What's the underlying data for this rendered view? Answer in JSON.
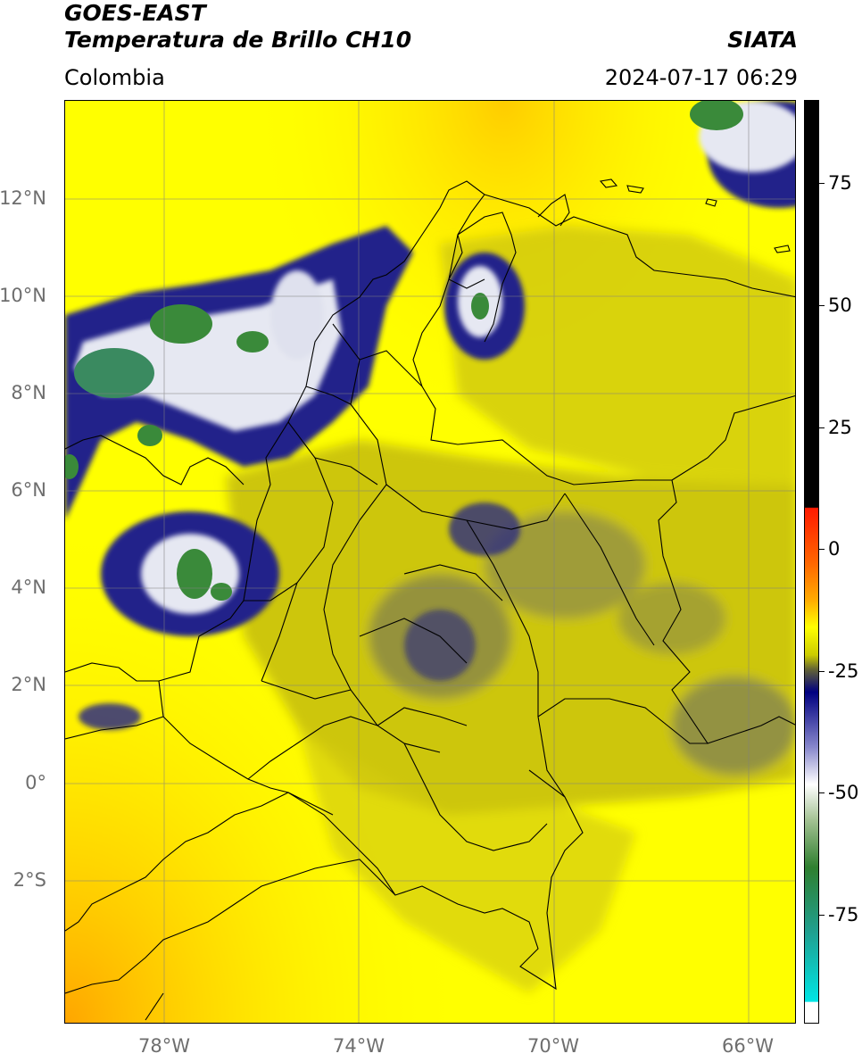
{
  "header": {
    "title_line1": "GOES-EAST",
    "title_line2": "Temperatura de Brillo CH10",
    "region": "Colombia",
    "organization": "SIATA",
    "datetime": "2024-07-17 06:29"
  },
  "map": {
    "latitude_labels": [
      "12°N",
      "10°N",
      "8°N",
      "6°N",
      "4°N",
      "2°N",
      "0°",
      "2°S"
    ],
    "longitude_labels": [
      "78°W",
      "74°W",
      "70°W",
      "66°W"
    ],
    "colors": {
      "background": "#ffff00",
      "warm_edge": "#ffaa00",
      "olive": "#c8c000",
      "dark_olive": "#8a8a4a",
      "navy": "#1a1a7a",
      "white_cloud": "#e8eaf0",
      "green_core": "#3a8a3a",
      "border": "#000000"
    }
  },
  "colorbar": {
    "tick_labels": [
      "75",
      "50",
      "25",
      "0",
      "-25",
      "-50",
      "-75"
    ],
    "colors": {
      "black": "#000000",
      "red": "#ff1a00",
      "orange": "#ff9900",
      "yellow": "#ffff00",
      "olive": "#666633",
      "navy": "#000080",
      "white": "#ffffff",
      "green": "#2f7f2f",
      "cyan": "#00e5e5"
    }
  }
}
